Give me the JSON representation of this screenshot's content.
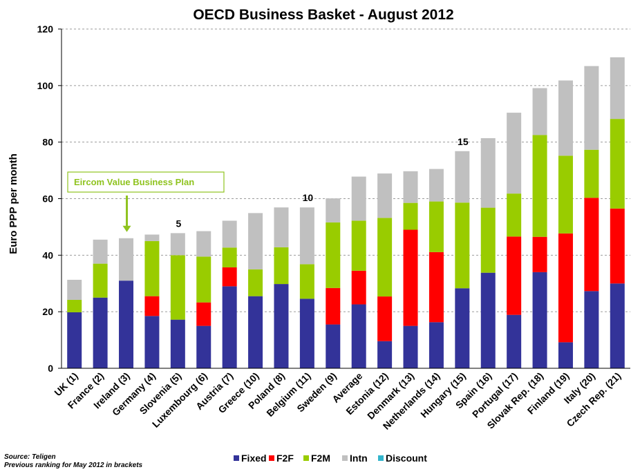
{
  "chart_data": {
    "type": "bar",
    "stacked": true,
    "title": "OECD Business Basket - August 2012",
    "ylabel": "Euro  PPP per month",
    "xlabel": "",
    "ylim": [
      0,
      120
    ],
    "yticks": [
      0,
      20,
      40,
      60,
      80,
      100,
      120
    ],
    "grid": true,
    "legend_position": "bottom",
    "categories": [
      "UK (1)",
      "France (2)",
      "Ireland (3)",
      "Germany (4)",
      "Slovenia (5)",
      "Luxembourg (6)",
      "Austria (7)",
      "Greece (10)",
      "Poland (8)",
      "Belgium (11)",
      "Sweden (9)",
      "Average",
      "Estonia (12)",
      "Denmark (13)",
      "Netherlands (14)",
      "Hungary (15)",
      "Spain (16)",
      "Portugal (17)",
      "Slovak Rep. (18)",
      "Finland (19)",
      "Italy (20)",
      "Czech Rep. (21)"
    ],
    "series": [
      {
        "name": "Fixed",
        "color": "#333399",
        "values": [
          19.8,
          25,
          31,
          18.5,
          17.2,
          15,
          29,
          25.5,
          29.8,
          24.6,
          15.5,
          22.6,
          9.6,
          15,
          16.3,
          28.3,
          33.8,
          18.9,
          34,
          9.2,
          27.3,
          30
        ]
      },
      {
        "name": "F2F",
        "color": "#ff0000",
        "values": [
          0,
          0,
          0,
          7,
          0,
          8.3,
          6.7,
          0,
          0,
          0,
          12.9,
          11.9,
          15.8,
          34,
          24.8,
          0,
          0,
          27.7,
          12.5,
          38.5,
          33,
          26.5
        ]
      },
      {
        "name": "F2M",
        "color": "#99cc00",
        "values": [
          4.4,
          12,
          0,
          19.5,
          22.8,
          16.2,
          7,
          9.5,
          13,
          12.2,
          23.2,
          17.7,
          27.8,
          9.5,
          17.9,
          30.3,
          23,
          15.2,
          36,
          27.5,
          17,
          31.7
        ]
      },
      {
        "name": "Intn",
        "color": "#c0c0c0",
        "values": [
          7.1,
          8.5,
          15,
          2.3,
          7.8,
          9,
          9.5,
          19.9,
          14.1,
          20.1,
          8.5,
          15.6,
          15.7,
          11.2,
          11.5,
          18.2,
          24.6,
          28.6,
          16.6,
          26.6,
          29.6,
          21.8
        ]
      },
      {
        "name": "Discount",
        "color": "#33b5cc",
        "values": [
          0,
          0,
          0,
          0,
          0,
          0,
          0,
          0,
          0,
          0,
          0,
          0,
          0,
          0,
          0,
          0,
          0,
          0,
          0,
          0,
          0,
          0
        ]
      }
    ],
    "rank_markers": [
      {
        "category": "Slovenia (5)",
        "label": "5"
      },
      {
        "category": "Belgium (11)",
        "label": "10"
      },
      {
        "category": "Hungary (15)",
        "label": "15"
      }
    ],
    "annotation": {
      "text": "Eircom Value Business Plan",
      "target_category": "Ireland (3)",
      "color": "#8fc31f"
    },
    "source_lines": [
      "Source:  Teligen",
      "Previous ranking for May 2012 in brackets"
    ]
  }
}
